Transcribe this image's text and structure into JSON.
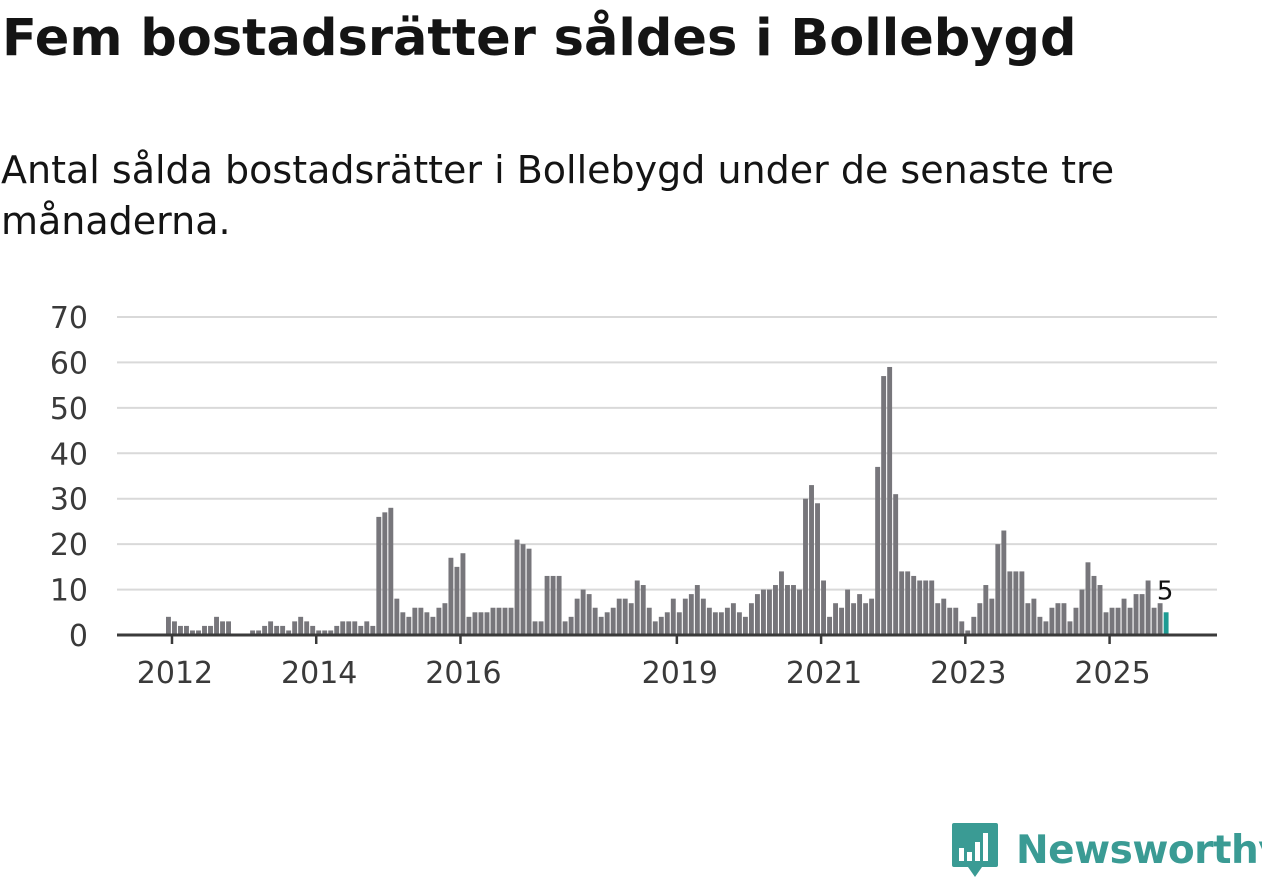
{
  "header": {
    "title": "Fem bostadsrätter såldes i Bollebygd",
    "subtitle": "Antal sålda bostadsrätter i Bollebygd under de senaste tre månaderna."
  },
  "brand": {
    "name": "Newsworthy",
    "icon": "bar-chart-speech-bubble-icon"
  },
  "colors": {
    "bar": "#77767b",
    "highlight": "#1e9b93",
    "grid": "#d9d9d9",
    "axis": "#3a3a3a",
    "brand": "#3a9b94"
  },
  "chart_data": {
    "type": "bar",
    "title": "Fem bostadsrätter såldes i Bollebygd",
    "subtitle": "Antal sålda bostadsrätter i Bollebygd under de senaste tre månaderna.",
    "xlabel": "",
    "ylabel": "",
    "ylim": [
      0,
      70
    ],
    "yticks": [
      "0",
      "10",
      "20",
      "30",
      "40",
      "50",
      "60",
      "70"
    ],
    "grid": true,
    "x_start": 2011.917,
    "x_step": 0.08333,
    "xticks": [
      {
        "label": "2012",
        "x": 2012
      },
      {
        "label": "2014",
        "x": 2014
      },
      {
        "label": "2016",
        "x": 2016
      },
      {
        "label": "2019",
        "x": 2019
      },
      {
        "label": "2021",
        "x": 2021
      },
      {
        "label": "2023",
        "x": 2023
      },
      {
        "label": "2025",
        "x": 2025
      }
    ],
    "values": [
      4,
      3,
      2,
      2,
      1,
      1,
      2,
      2,
      4,
      3,
      3,
      0,
      0,
      0,
      1,
      1,
      2,
      3,
      2,
      2,
      1,
      3,
      4,
      3,
      2,
      1,
      1,
      1,
      2,
      3,
      3,
      3,
      2,
      3,
      2,
      26,
      27,
      28,
      8,
      5,
      4,
      6,
      6,
      5,
      4,
      6,
      7,
      17,
      15,
      18,
      4,
      5,
      5,
      5,
      6,
      6,
      6,
      6,
      21,
      20,
      19,
      3,
      3,
      13,
      13,
      13,
      3,
      4,
      8,
      10,
      9,
      6,
      4,
      5,
      6,
      8,
      8,
      7,
      12,
      11,
      6,
      3,
      4,
      5,
      8,
      5,
      8,
      9,
      11,
      8,
      6,
      5,
      5,
      6,
      7,
      5,
      4,
      7,
      9,
      10,
      10,
      11,
      14,
      11,
      11,
      10,
      30,
      33,
      29,
      12,
      4,
      7,
      6,
      10,
      7,
      9,
      7,
      8,
      37,
      57,
      59,
      31,
      14,
      14,
      13,
      12,
      12,
      12,
      7,
      8,
      6,
      6,
      3,
      1,
      4,
      7,
      11,
      8,
      20,
      23,
      14,
      14,
      14,
      7,
      8,
      4,
      3,
      6,
      7,
      7,
      3,
      6,
      10,
      16,
      13,
      11,
      5,
      6,
      6,
      8,
      6,
      9,
      9,
      12,
      6,
      7,
      5
    ],
    "highlight_last": 3,
    "annotation": {
      "label": "5",
      "value": 5
    }
  }
}
